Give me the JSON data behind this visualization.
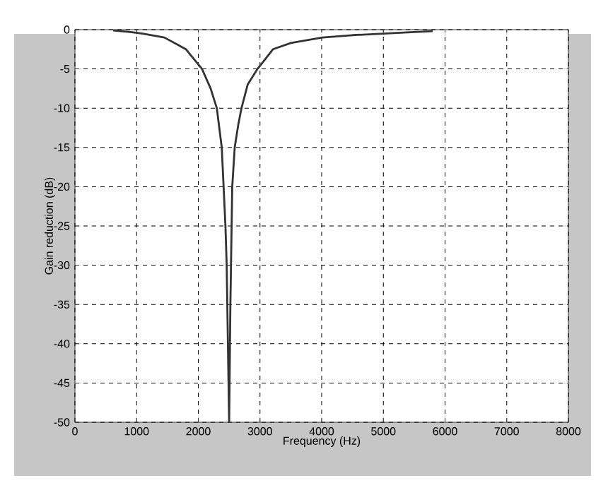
{
  "chart_data": {
    "type": "line",
    "xlabel": "Frequency (Hz)",
    "ylabel": "Gain reduction (dB)",
    "xlim": [
      0,
      8000
    ],
    "ylim": [
      -50,
      0
    ],
    "xticks": [
      0,
      1000,
      2000,
      3000,
      4000,
      5000,
      6000,
      7000,
      8000
    ],
    "yticks": [
      -50,
      -45,
      -40,
      -35,
      -30,
      -25,
      -20,
      -15,
      -10,
      -5,
      0
    ],
    "grid": true,
    "line_style": "solid",
    "series": [
      {
        "color": "#333333",
        "x": [
          620,
          900,
          1100,
          1450,
          1800,
          2060,
          2200,
          2300,
          2380,
          2410,
          2440,
          2460,
          2480,
          2500,
          2520,
          2550,
          2590,
          2650,
          2700,
          2800,
          2960,
          3210,
          3500,
          4010,
          4500,
          5000,
          5500,
          5800
        ],
        "values": [
          -0.1,
          -0.3,
          -0.5,
          -1,
          -2.5,
          -5,
          -7.5,
          -10,
          -15,
          -20,
          -25,
          -30,
          -40,
          -50,
          -35,
          -20,
          -15,
          -12,
          -10,
          -7,
          -5,
          -2.5,
          -1.7,
          -1,
          -0.7,
          -0.5,
          -0.3,
          -0.2
        ]
      }
    ]
  }
}
